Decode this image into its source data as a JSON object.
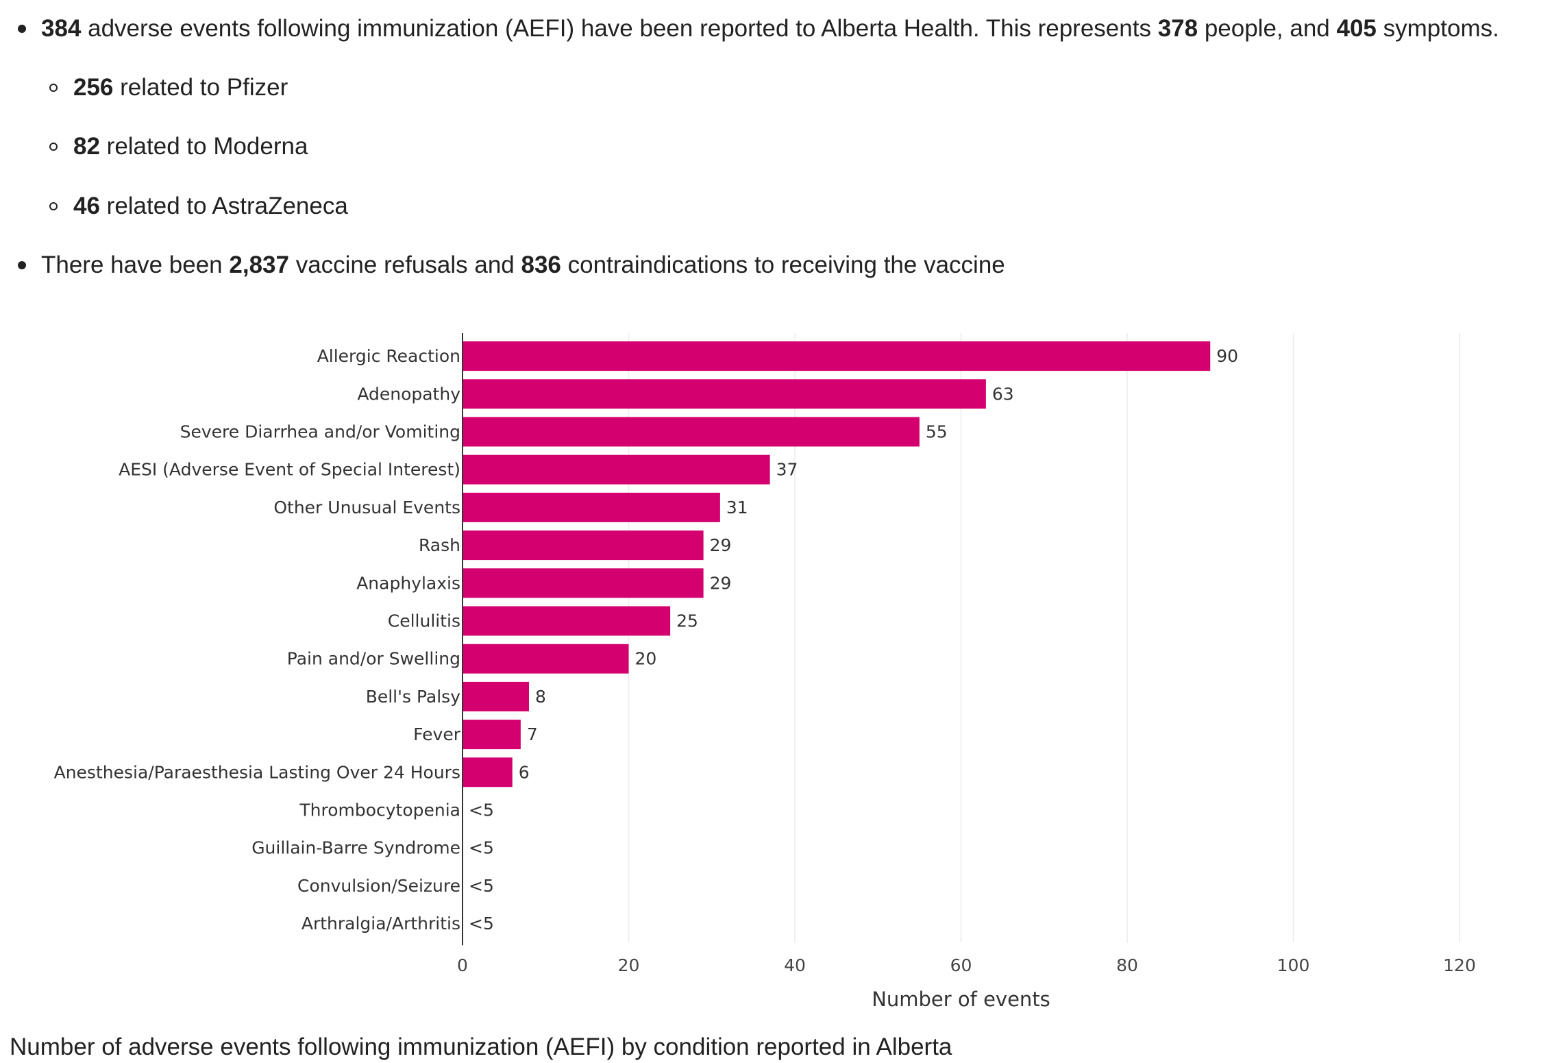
{
  "summary": {
    "line1": {
      "n1": "384",
      "t1": " adverse events following immunization (AEFI) have been reported to Alberta Health. This represents ",
      "n2": "378",
      "t2": " people, and ",
      "n3": "405",
      "t3": " symptoms."
    },
    "sub": [
      {
        "num": "256",
        "text": " related to Pfizer"
      },
      {
        "num": "82",
        "text": " related to Moderna"
      },
      {
        "num": "46",
        "text": " related to AstraZeneca"
      }
    ],
    "line2": {
      "t0": "There have been ",
      "n1": "2,837",
      "t1": " vaccine refusals and ",
      "n2": "836",
      "t2": " contraindications to receiving the vaccine"
    }
  },
  "chart_data": {
    "type": "bar",
    "orientation": "horizontal",
    "categories": [
      "Allergic Reaction",
      "Adenopathy",
      "Severe Diarrhea and/or Vomiting",
      "AESI (Adverse Event of Special Interest)",
      "Other Unusual Events",
      "Rash",
      "Anaphylaxis",
      "Cellulitis",
      "Pain and/or Swelling",
      "Bell's Palsy",
      "Fever",
      "Anesthesia/Paraesthesia Lasting Over 24 Hours",
      "Thrombocytopenia",
      "Guillain-Barre Syndrome",
      "Convulsion/Seizure",
      "Arthralgia/Arthritis"
    ],
    "values": [
      90,
      63,
      55,
      37,
      31,
      29,
      29,
      25,
      20,
      8,
      7,
      6,
      0,
      0,
      0,
      0
    ],
    "data_labels": [
      "90",
      "63",
      "55",
      "37",
      "31",
      "29",
      "29",
      "25",
      "20",
      "8",
      "7",
      "6",
      "<5",
      "<5",
      "<5",
      "<5"
    ],
    "xlabel": "Number of events",
    "ylabel": "",
    "xlim": [
      0,
      120
    ],
    "xticks": [
      0,
      20,
      40,
      60,
      80,
      100,
      120
    ],
    "grid": true,
    "bar_color": "#d4006f"
  },
  "caption": "Number of adverse events following immunization (AEFI) by condition reported in Alberta"
}
